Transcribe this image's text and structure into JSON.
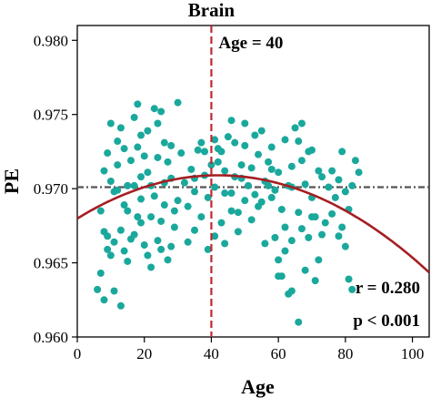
{
  "chart_data": {
    "type": "scatter",
    "title": "Brain",
    "xlabel": "Age",
    "ylabel": "PE",
    "xlim": [
      0,
      105
    ],
    "ylim": [
      0.96,
      0.981
    ],
    "x_ticks": [
      0,
      20,
      40,
      60,
      80,
      100
    ],
    "x_tick_labels": [
      "0",
      "20",
      "40",
      "60",
      "80",
      "100"
    ],
    "y_ticks": [
      0.96,
      0.965,
      0.97,
      0.975,
      0.98
    ],
    "y_tick_labels": [
      "0.960",
      "0.965",
      "0.970",
      "0.975",
      "0.980"
    ],
    "grid": false,
    "colors": {
      "points": "#1aa89c",
      "fit": "#a51e22",
      "age_line": "#c0272d",
      "reference": "#555555"
    },
    "vertical_line": {
      "x": 40,
      "label": "Age = 40"
    },
    "reference_line": {
      "y": 0.9701
    },
    "fit_curve": {
      "a": -1.65e-06,
      "vertex_x": 42,
      "vertex_y": 0.9709
    },
    "annotations": {
      "r": "r = 0.280",
      "p": "p < 0.001"
    },
    "points": [
      [
        6,
        0.9632
      ],
      [
        7,
        0.9643
      ],
      [
        8,
        0.9625
      ],
      [
        9,
        0.9668
      ],
      [
        10,
        0.9655
      ],
      [
        8,
        0.9712
      ],
      [
        9,
        0.9724
      ],
      [
        10,
        0.9705
      ],
      [
        11,
        0.9698
      ],
      [
        12,
        0.9716
      ],
      [
        13,
        0.9741
      ],
      [
        12,
        0.9732
      ],
      [
        14,
        0.9689
      ],
      [
        15,
        0.9702
      ],
      [
        16,
        0.9719
      ],
      [
        17,
        0.9748
      ],
      [
        18,
        0.9757
      ],
      [
        19,
        0.9736
      ],
      [
        20,
        0.9722
      ],
      [
        21,
        0.9711
      ],
      [
        22,
        0.9702
      ],
      [
        23,
        0.9695
      ],
      [
        24,
        0.9744
      ],
      [
        25,
        0.9752
      ],
      [
        26,
        0.9731
      ],
      [
        27,
        0.9718
      ],
      [
        28,
        0.9707
      ],
      [
        29,
        0.9685
      ],
      [
        30,
        0.9758
      ],
      [
        31,
        0.9724
      ],
      [
        7,
        0.9685
      ],
      [
        8,
        0.9671
      ],
      [
        9,
        0.9659
      ],
      [
        11,
        0.9664
      ],
      [
        13,
        0.9672
      ],
      [
        14,
        0.9658
      ],
      [
        15,
        0.9651
      ],
      [
        16,
        0.9666
      ],
      [
        18,
        0.9681
      ],
      [
        19,
        0.9693
      ],
      [
        20,
        0.9662
      ],
      [
        21,
        0.9655
      ],
      [
        22,
        0.9647
      ],
      [
        24,
        0.9665
      ],
      [
        25,
        0.9678
      ],
      [
        26,
        0.9689
      ],
      [
        27,
        0.9652
      ],
      [
        28,
        0.9661
      ],
      [
        29,
        0.9674
      ],
      [
        30,
        0.9692
      ],
      [
        32,
        0.9704
      ],
      [
        33,
        0.9688
      ],
      [
        34,
        0.9713
      ],
      [
        35,
        0.9698
      ],
      [
        36,
        0.9726
      ],
      [
        37,
        0.9731
      ],
      [
        38,
        0.9709
      ],
      [
        39,
        0.9694
      ],
      [
        41,
        0.9701
      ],
      [
        42,
        0.9718
      ],
      [
        43,
        0.9725
      ],
      [
        44,
        0.9712
      ],
      [
        45,
        0.9735
      ],
      [
        46,
        0.9697
      ],
      [
        47,
        0.9708
      ],
      [
        48,
        0.9684
      ],
      [
        49,
        0.9716
      ],
      [
        50,
        0.9729
      ],
      [
        51,
        0.9702
      ],
      [
        52,
        0.9714
      ],
      [
        53,
        0.9736
      ],
      [
        54,
        0.9723
      ],
      [
        55,
        0.9691
      ],
      [
        56,
        0.9705
      ],
      [
        57,
        0.9718
      ],
      [
        58,
        0.9728
      ],
      [
        59,
        0.9699
      ],
      [
        60,
        0.9711
      ],
      [
        61,
        0.9686
      ],
      [
        62,
        0.9674
      ],
      [
        63,
        0.9702
      ],
      [
        64,
        0.9715
      ],
      [
        65,
        0.9741
      ],
      [
        66,
        0.9732
      ],
      [
        67,
        0.9719
      ],
      [
        68,
        0.9703
      ],
      [
        69,
        0.9725
      ],
      [
        70,
        0.9694
      ],
      [
        71,
        0.9681
      ],
      [
        72,
        0.9712
      ],
      [
        33,
        0.9664
      ],
      [
        35,
        0.9672
      ],
      [
        37,
        0.9681
      ],
      [
        39,
        0.9659
      ],
      [
        41,
        0.9668
      ],
      [
        43,
        0.9677
      ],
      [
        44,
        0.9663
      ],
      [
        46,
        0.9685
      ],
      [
        48,
        0.9671
      ],
      [
        50,
        0.9692
      ],
      [
        52,
        0.9679
      ],
      [
        54,
        0.9688
      ],
      [
        56,
        0.9663
      ],
      [
        58,
        0.9694
      ],
      [
        59,
        0.9667
      ],
      [
        60,
        0.9652
      ],
      [
        61,
        0.9641
      ],
      [
        62,
        0.9658
      ],
      [
        63,
        0.9629
      ],
      [
        64,
        0.9665
      ],
      [
        66,
        0.9684
      ],
      [
        67,
        0.9673
      ],
      [
        68,
        0.9645
      ],
      [
        69,
        0.9667
      ],
      [
        70,
        0.9681
      ],
      [
        71,
        0.9638
      ],
      [
        72,
        0.9652
      ],
      [
        73,
        0.9669
      ],
      [
        74,
        0.9677
      ],
      [
        75,
        0.9701
      ],
      [
        76,
        0.9712
      ],
      [
        77,
        0.9694
      ],
      [
        78,
        0.9706
      ],
      [
        79,
        0.9725
      ],
      [
        80,
        0.9698
      ],
      [
        81,
        0.9686
      ],
      [
        82,
        0.9702
      ],
      [
        83,
        0.9719
      ],
      [
        84,
        0.9711
      ],
      [
        78,
        0.9668
      ],
      [
        80,
        0.9661
      ],
      [
        81,
        0.9639
      ],
      [
        82,
        0.9632
      ],
      [
        66,
        0.961
      ],
      [
        64,
        0.9631
      ],
      [
        60,
        0.9641
      ],
      [
        35,
        0.9707
      ],
      [
        38,
        0.9725
      ],
      [
        40,
        0.9716
      ],
      [
        41,
        0.9733
      ],
      [
        42,
        0.9727
      ],
      [
        10,
        0.9744
      ],
      [
        12,
        0.9699
      ],
      [
        14,
        0.9727
      ],
      [
        17,
        0.9702
      ],
      [
        18,
        0.9728
      ],
      [
        19,
        0.9708
      ],
      [
        21,
        0.9739
      ],
      [
        23,
        0.9754
      ],
      [
        24,
        0.9721
      ],
      [
        26,
        0.9704
      ],
      [
        28,
        0.9729
      ],
      [
        15,
        0.9685
      ],
      [
        17,
        0.9669
      ],
      [
        19,
        0.9677
      ],
      [
        22,
        0.9681
      ],
      [
        25,
        0.9659
      ],
      [
        11,
        0.9631
      ],
      [
        13,
        0.9621
      ],
      [
        46,
        0.9746
      ],
      [
        50,
        0.9744
      ],
      [
        55,
        0.9739
      ],
      [
        57,
        0.9702
      ],
      [
        44,
        0.9697
      ],
      [
        47,
        0.9731
      ],
      [
        49,
        0.9707
      ],
      [
        53,
        0.9696
      ],
      [
        58,
        0.9713
      ],
      [
        62,
        0.9733
      ],
      [
        64,
        0.9701
      ],
      [
        67,
        0.9744
      ],
      [
        70,
        0.9726
      ],
      [
        73,
        0.9708
      ],
      [
        76,
        0.9683
      ],
      [
        79,
        0.9674
      ]
    ]
  }
}
